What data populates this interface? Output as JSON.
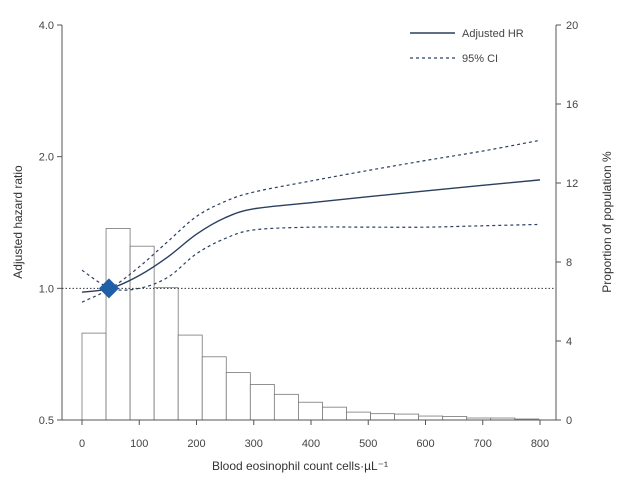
{
  "chart_data": {
    "type": "line",
    "xlabel": "Blood eosinophil count cells·µL⁻¹",
    "ylabel_left": "Adjusted hazard ratio",
    "ylabel_right": "Proportion of population %",
    "x_ticks": [
      "0",
      "100",
      "200",
      "300",
      "400",
      "500",
      "600",
      "700",
      "800"
    ],
    "xlim": [
      0,
      800
    ],
    "y_left_scale": "log",
    "y_left_ticks": [
      "0.5",
      "1.0",
      "2.0",
      "4.0"
    ],
    "y_left_lim": [
      0.5,
      4.0
    ],
    "y_right_ticks": [
      "0",
      "4",
      "8",
      "12",
      "16",
      "20"
    ],
    "y_right_lim": [
      0,
      20
    ],
    "reference_line": {
      "y": 1.0,
      "style": "dotted"
    },
    "reference_point": {
      "x": 47,
      "y": 1.0,
      "marker": "diamond",
      "color": "#1f5fa8"
    },
    "legend": {
      "placement": "top-right",
      "entries": [
        "Adjusted HR",
        "95% CI"
      ]
    },
    "series": [
      {
        "name": "Adjusted HR",
        "style": "solid",
        "color": "#2b3f5e",
        "x": [
          0,
          50,
          100,
          150,
          200,
          250,
          300,
          400,
          500,
          600,
          700,
          800
        ],
        "y": [
          0.98,
          1.0,
          1.07,
          1.18,
          1.33,
          1.45,
          1.52,
          1.57,
          1.62,
          1.67,
          1.72,
          1.77
        ]
      },
      {
        "name": "95% CI upper",
        "style": "dashed",
        "color": "#2b3f5e",
        "x": [
          0,
          50,
          100,
          150,
          200,
          250,
          300,
          400,
          500,
          600,
          700,
          800
        ],
        "y": [
          0.93,
          1.0,
          1.12,
          1.28,
          1.46,
          1.58,
          1.66,
          1.76,
          1.86,
          1.96,
          2.06,
          2.18
        ]
      },
      {
        "name": "95% CI lower",
        "style": "dashed",
        "color": "#2b3f5e",
        "x": [
          0,
          50,
          100,
          150,
          200,
          250,
          300,
          400,
          500,
          600,
          700,
          800
        ],
        "y": [
          1.1,
          1.0,
          1.0,
          1.06,
          1.2,
          1.3,
          1.36,
          1.38,
          1.38,
          1.38,
          1.39,
          1.4
        ]
      }
    ],
    "histogram": {
      "axis": "right",
      "bin_width": 42,
      "bin_starts": [
        0,
        42,
        84,
        126,
        168,
        210,
        252,
        294,
        336,
        378,
        420,
        462,
        504,
        546,
        588,
        630,
        672,
        714,
        756
      ],
      "values": [
        4.4,
        9.7,
        8.8,
        6.7,
        4.3,
        3.2,
        2.4,
        1.8,
        1.3,
        0.9,
        0.65,
        0.4,
        0.32,
        0.3,
        0.2,
        0.18,
        0.1,
        0.1,
        0.05
      ]
    }
  }
}
